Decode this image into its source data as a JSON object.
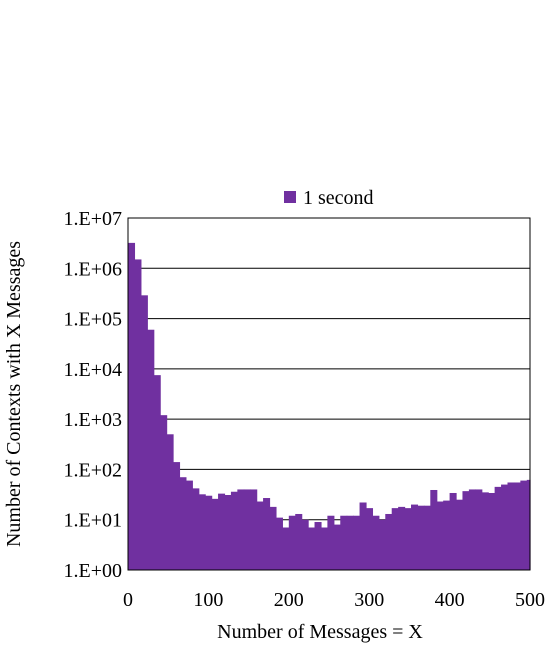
{
  "chart_data": {
    "type": "bar",
    "series": [
      {
        "name": "1 second",
        "color": "#7030a0",
        "bin_width": 8,
        "x": [
          0,
          8,
          16,
          24,
          32,
          40,
          48,
          56,
          64,
          72,
          80,
          88,
          96,
          104,
          112,
          120,
          128,
          136,
          144,
          152,
          160,
          168,
          176,
          184,
          192,
          200,
          208,
          216,
          224,
          232,
          240,
          248,
          256,
          264,
          272,
          280,
          288,
          296,
          304,
          312,
          320,
          328,
          336,
          344,
          352,
          360,
          368,
          376,
          384,
          392,
          400,
          408,
          416,
          424,
          432,
          440,
          448,
          456,
          464,
          472,
          480,
          488,
          496
        ],
        "values": [
          3200000,
          1500000,
          290000,
          60000,
          7500,
          1200,
          500,
          140,
          70,
          60,
          42,
          32,
          30,
          26,
          33,
          31,
          36,
          40,
          40,
          40,
          23,
          27,
          18,
          11,
          7,
          12,
          13,
          10,
          7,
          9,
          7,
          12,
          8,
          12,
          12,
          12,
          22,
          17,
          12,
          10,
          13,
          17,
          18,
          17,
          20,
          19,
          19,
          39,
          23,
          24,
          34,
          25,
          37,
          40,
          40,
          35,
          34,
          45,
          50,
          55,
          55,
          60,
          62
        ]
      }
    ],
    "xlabel": "Number of Messages = X",
    "ylabel": "Number of Contexts with X Messages",
    "xlim": [
      0,
      500
    ],
    "ylim": [
      1,
      10000000
    ],
    "y_scale": "log",
    "x_ticks": [
      0,
      100,
      200,
      300,
      400,
      500
    ],
    "x_tick_labels": [
      "0",
      "100",
      "200",
      "300",
      "400",
      "500"
    ],
    "y_ticks": [
      1,
      10,
      100,
      1000,
      10000,
      100000,
      1000000,
      10000000
    ],
    "y_tick_labels": [
      "1.E+00",
      "1.E+01",
      "1.E+02",
      "1.E+03",
      "1.E+04",
      "1.E+05",
      "1.E+06",
      "1.E+07"
    ],
    "grid": "horizontal",
    "legend_position": "top-center"
  }
}
